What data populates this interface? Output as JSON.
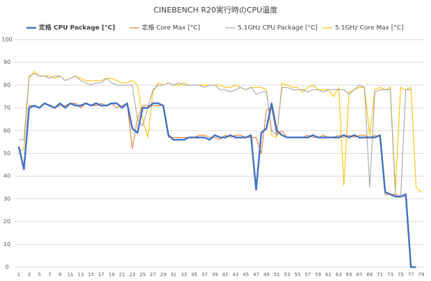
{
  "chart_data": {
    "type": "line",
    "title": "CINEBENCH R20実行時のCPU温度",
    "x": [
      1,
      2,
      3,
      4,
      5,
      6,
      7,
      8,
      9,
      10,
      11,
      12,
      13,
      14,
      15,
      16,
      17,
      18,
      19,
      20,
      21,
      22,
      23,
      24,
      25,
      26,
      27,
      28,
      29,
      30,
      31,
      32,
      33,
      34,
      35,
      36,
      37,
      38,
      39,
      40,
      41,
      42,
      43,
      44,
      45,
      46,
      47,
      48,
      49,
      50,
      51,
      52,
      53,
      54,
      55,
      56,
      57,
      58,
      59,
      60,
      61,
      62,
      63,
      64,
      65,
      66,
      67,
      68,
      69,
      70,
      71,
      72,
      73,
      74,
      75,
      76,
      77,
      78,
      79
    ],
    "xlim": [
      1,
      79
    ],
    "xticks": [
      1,
      3,
      5,
      7,
      9,
      11,
      13,
      15,
      17,
      19,
      21,
      23,
      25,
      27,
      29,
      31,
      33,
      35,
      37,
      39,
      41,
      43,
      45,
      47,
      49,
      51,
      53,
      55,
      57,
      59,
      61,
      63,
      65,
      67,
      69,
      71,
      73,
      75,
      77,
      79
    ],
    "ylim": [
      0,
      100
    ],
    "yticks": [
      0,
      10,
      20,
      30,
      40,
      50,
      60,
      70,
      80,
      90,
      100
    ],
    "grid": true,
    "legend": "top",
    "series": [
      {
        "name": "定格 CPU Package [°C]",
        "color": "#4472c4",
        "values": [
          53,
          43,
          70,
          71,
          70,
          72,
          71,
          70,
          72,
          70,
          72,
          71,
          71,
          72,
          71,
          72,
          71,
          71,
          72,
          72,
          70,
          72,
          61,
          59,
          70,
          70,
          72,
          72,
          71,
          58,
          56,
          56,
          56,
          57,
          57,
          57,
          57,
          56,
          58,
          57,
          57,
          58,
          57,
          57,
          57,
          58,
          34,
          59,
          61,
          72,
          60,
          58,
          57,
          57,
          57,
          57,
          57,
          58,
          57,
          57,
          57,
          57,
          57,
          58,
          57,
          58,
          57,
          57,
          57,
          57,
          58,
          33,
          32,
          31,
          31,
          32,
          0,
          0,
          null
        ]
      },
      {
        "name": "定格 Core Max [°C]",
        "color": "#ed7d31",
        "values": [
          53,
          44,
          71,
          71,
          70,
          72,
          71,
          70,
          71,
          71,
          72,
          72,
          70,
          72,
          71,
          71,
          72,
          71,
          72,
          70,
          71,
          72,
          52,
          65,
          71,
          71,
          71,
          71,
          71,
          57,
          57,
          57,
          57,
          57,
          57,
          58,
          58,
          57,
          57,
          56,
          58,
          57,
          58,
          58,
          57,
          57,
          57,
          50,
          69,
          70,
          58,
          60,
          57,
          57,
          57,
          57,
          58,
          57,
          57,
          58,
          57,
          57,
          58,
          57,
          58,
          57,
          58,
          58,
          57,
          58,
          57,
          32,
          32,
          32,
          31,
          31,
          0,
          0,
          null
        ]
      },
      {
        "name": "5.1GHz CPU Package [°C]",
        "color": "#a5a5a5",
        "values": [
          56,
          56,
          84,
          85,
          84,
          84,
          83,
          84,
          84,
          82,
          83,
          84,
          82,
          81,
          80,
          81,
          81,
          83,
          81,
          80,
          80,
          80,
          80,
          65,
          62,
          70,
          78,
          80,
          80,
          81,
          80,
          81,
          80,
          80,
          80,
          80,
          79,
          80,
          80,
          78,
          78,
          77,
          78,
          79,
          78,
          79,
          76,
          77,
          77,
          60,
          58,
          79,
          79,
          78,
          78,
          78,
          77,
          78,
          78,
          77,
          78,
          78,
          78,
          78,
          76,
          78,
          80,
          79,
          35,
          77,
          78,
          78,
          78,
          31,
          31,
          78,
          78,
          null,
          null
        ]
      },
      {
        "name": "5.1GHz Core Max [°C]",
        "color": "#ffc000",
        "values": [
          51,
          52,
          83,
          86,
          84,
          84,
          84,
          83,
          84,
          82,
          83,
          84,
          83,
          82,
          82,
          82,
          82,
          83,
          83,
          82,
          81,
          81,
          82,
          80,
          65,
          57,
          77,
          81,
          80,
          81,
          80,
          80,
          81,
          80,
          80,
          80,
          80,
          80,
          80,
          80,
          79,
          79,
          80,
          79,
          78,
          79,
          79,
          79,
          78,
          58,
          57,
          81,
          80,
          79,
          79,
          77,
          79,
          80,
          78,
          78,
          78,
          75,
          79,
          36,
          77,
          78,
          79,
          79,
          58,
          78,
          79,
          78,
          79,
          34,
          79,
          78,
          79,
          35,
          33
        ]
      }
    ]
  }
}
